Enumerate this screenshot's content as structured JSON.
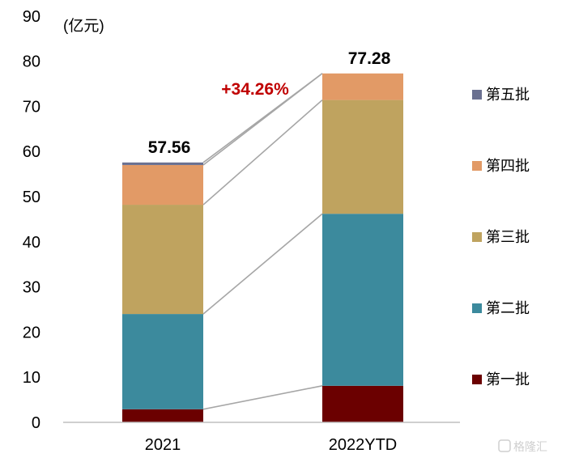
{
  "chart_data": {
    "type": "bar",
    "stacked": true,
    "unit_label": "(亿元)",
    "categories": [
      "2021",
      "2022YTD"
    ],
    "ylim": [
      0,
      90
    ],
    "yticks": [
      0,
      10,
      20,
      30,
      40,
      50,
      60,
      70,
      80,
      90
    ],
    "series": [
      {
        "name": "第一批",
        "color": "#6b0000",
        "values": [
          2.9,
          8.1
        ]
      },
      {
        "name": "第二批",
        "color": "#3c8a9d",
        "values": [
          21.1,
          38.1
        ]
      },
      {
        "name": "第三批",
        "color": "#bfa35f",
        "values": [
          24.2,
          25.2
        ]
      },
      {
        "name": "第四批",
        "color": "#e29a66",
        "values": [
          8.8,
          5.88
        ]
      },
      {
        "name": "第五批",
        "color": "#6a7090",
        "values": [
          0.56,
          0
        ]
      }
    ],
    "totals": [
      "57.56",
      "77.28"
    ],
    "growth_label": "+34.26%",
    "legend_position": "right",
    "grid": false
  },
  "watermark": "格隆汇"
}
